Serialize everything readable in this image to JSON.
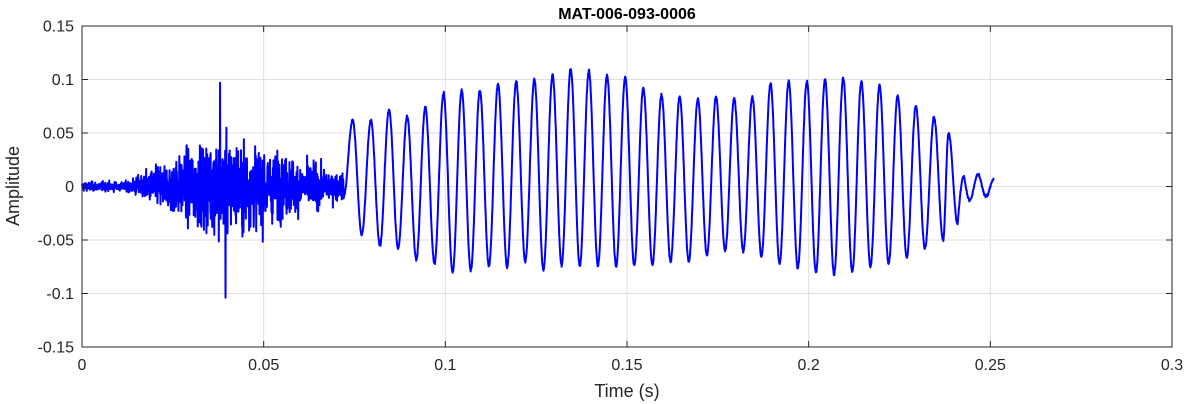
{
  "chart_data": {
    "type": "line",
    "title": "MAT-006-093-0006",
    "xlabel": "Time (s)",
    "ylabel": "Amplitude",
    "xlim": [
      0,
      0.3
    ],
    "ylim": [
      -0.15,
      0.15
    ],
    "xticks": [
      0,
      0.05,
      0.1,
      0.15,
      0.2,
      0.25,
      0.3
    ],
    "xtick_labels": [
      "0",
      "0.05",
      "0.1",
      "0.15",
      "0.2",
      "0.25",
      "0.3"
    ],
    "yticks": [
      -0.15,
      -0.1,
      -0.05,
      0,
      0.05,
      0.1,
      0.15
    ],
    "ytick_labels": [
      "-0.15",
      "-0.1",
      "-0.05",
      "0",
      "0.05",
      "0.1",
      "0.15"
    ],
    "grid": true,
    "line_color": "#0000ff",
    "series": [
      {
        "signal_end_s": 0.251,
        "noise_burst": {
          "start_s": 0.0,
          "end_s": 0.072,
          "peak_time_s": 0.038,
          "peak_max": 0.097,
          "peak_min": -0.104
        },
        "voiced_cycle_extrema": [
          {
            "t": 0.0745,
            "max": 0.062,
            "min": -0.045
          },
          {
            "t": 0.0795,
            "max": 0.062,
            "min": -0.055
          },
          {
            "t": 0.0845,
            "max": 0.072,
            "min": -0.058
          },
          {
            "t": 0.0895,
            "max": 0.066,
            "min": -0.068
          },
          {
            "t": 0.0945,
            "max": 0.074,
            "min": -0.072
          },
          {
            "t": 0.0995,
            "max": 0.087,
            "min": -0.08
          },
          {
            "t": 0.1045,
            "max": 0.09,
            "min": -0.078
          },
          {
            "t": 0.1095,
            "max": 0.09,
            "min": -0.074
          },
          {
            "t": 0.1145,
            "max": 0.096,
            "min": -0.075
          },
          {
            "t": 0.1195,
            "max": 0.098,
            "min": -0.07
          },
          {
            "t": 0.1245,
            "max": 0.1,
            "min": -0.078
          },
          {
            "t": 0.1295,
            "max": 0.104,
            "min": -0.073
          },
          {
            "t": 0.1345,
            "max": 0.11,
            "min": -0.074
          },
          {
            "t": 0.1395,
            "max": 0.108,
            "min": -0.074
          },
          {
            "t": 0.1445,
            "max": 0.104,
            "min": -0.075
          },
          {
            "t": 0.1495,
            "max": 0.102,
            "min": -0.074
          },
          {
            "t": 0.1545,
            "max": 0.092,
            "min": -0.073
          },
          {
            "t": 0.1595,
            "max": 0.086,
            "min": -0.07
          },
          {
            "t": 0.1645,
            "max": 0.084,
            "min": -0.07
          },
          {
            "t": 0.1695,
            "max": 0.082,
            "min": -0.064
          },
          {
            "t": 0.1745,
            "max": 0.084,
            "min": -0.06
          },
          {
            "t": 0.1795,
            "max": 0.082,
            "min": -0.06
          },
          {
            "t": 0.1845,
            "max": 0.084,
            "min": -0.065
          },
          {
            "t": 0.1895,
            "max": 0.096,
            "min": -0.072
          },
          {
            "t": 0.1945,
            "max": 0.098,
            "min": -0.076
          },
          {
            "t": 0.1995,
            "max": 0.098,
            "min": -0.08
          },
          {
            "t": 0.2045,
            "max": 0.1,
            "min": -0.082
          },
          {
            "t": 0.2095,
            "max": 0.101,
            "min": -0.08
          },
          {
            "t": 0.2145,
            "max": 0.098,
            "min": -0.075
          },
          {
            "t": 0.2195,
            "max": 0.094,
            "min": -0.072
          },
          {
            "t": 0.2245,
            "max": 0.085,
            "min": -0.066
          },
          {
            "t": 0.2295,
            "max": 0.075,
            "min": -0.058
          },
          {
            "t": 0.2345,
            "max": 0.065,
            "min": -0.05
          },
          {
            "t": 0.2385,
            "max": 0.05,
            "min": -0.035
          }
        ],
        "tail_ripple": {
          "start_s": 0.24,
          "end_s": 0.251,
          "max": 0.018,
          "min": -0.013
        }
      }
    ]
  }
}
